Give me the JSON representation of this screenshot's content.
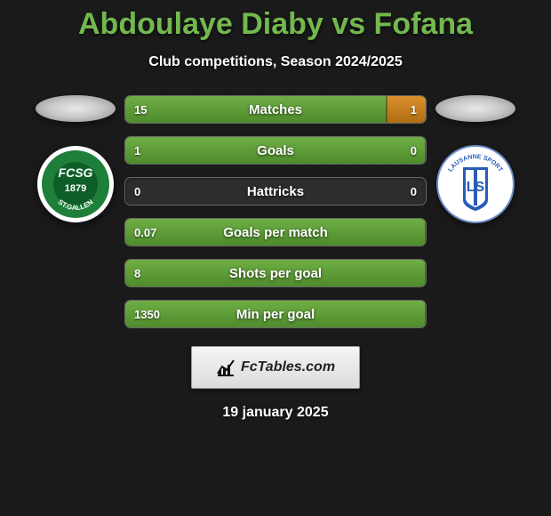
{
  "title": "Abdoulaye Diaby vs Fofana",
  "title_color": "#72b84e",
  "subtitle": "Club competitions, Season 2024/2025",
  "date": "19 january 2025",
  "brand": {
    "label": "FcTables.com"
  },
  "left_badge": {
    "name": "fc-st-gallen-badge",
    "bg": "#ffffff",
    "ring": "#1d7f3a",
    "text_top": "FCSG",
    "text_mid": "1879",
    "text_bottom": "ST.GALLEN",
    "text_color": "#ffffff"
  },
  "right_badge": {
    "name": "lausanne-sport-badge",
    "bg": "#ffffff",
    "accent": "#2a5bb8",
    "label": "LAUSANNE SPORT",
    "letters": "LS"
  },
  "bar_style": {
    "left_color": "#6fae45",
    "right_color": "#d98f2e",
    "track_color": "#2d2d2d"
  },
  "stats": [
    {
      "label": "Matches",
      "left_val": "15",
      "right_val": "1",
      "left_pct": 87,
      "right_pct": 13
    },
    {
      "label": "Goals",
      "left_val": "1",
      "right_val": "0",
      "left_pct": 100,
      "right_pct": 0
    },
    {
      "label": "Hattricks",
      "left_val": "0",
      "right_val": "0",
      "left_pct": 0,
      "right_pct": 0
    },
    {
      "label": "Goals per match",
      "left_val": "0.07",
      "right_val": "",
      "left_pct": 100,
      "right_pct": 0
    },
    {
      "label": "Shots per goal",
      "left_val": "8",
      "right_val": "",
      "left_pct": 100,
      "right_pct": 0
    },
    {
      "label": "Min per goal",
      "left_val": "1350",
      "right_val": "",
      "left_pct": 100,
      "right_pct": 0
    }
  ]
}
